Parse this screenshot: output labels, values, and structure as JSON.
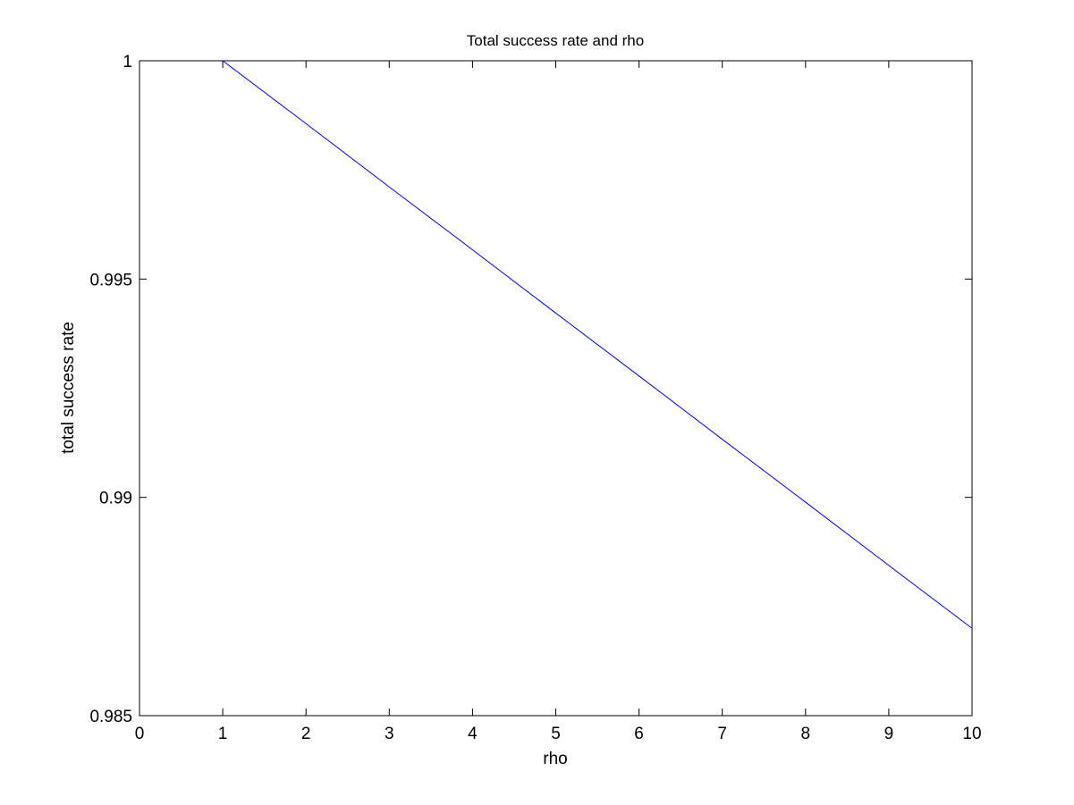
{
  "chart_data": {
    "type": "line",
    "title": "Total success rate and rho",
    "xlabel": "rho",
    "ylabel": "total success rate",
    "xlim": [
      0,
      10
    ],
    "ylim": [
      0.985,
      1
    ],
    "xticks": [
      "0",
      "1",
      "2",
      "3",
      "4",
      "5",
      "6",
      "7",
      "8",
      "9",
      "10"
    ],
    "yticks": [
      "0.985",
      "0.99",
      "0.995",
      "1"
    ],
    "grid": false,
    "series": [
      {
        "color": "#0000ff",
        "x": [
          1,
          2,
          3,
          4,
          5,
          6,
          7,
          8,
          9,
          10
        ],
        "y": [
          1.0,
          0.99856,
          0.99711,
          0.99567,
          0.99422,
          0.99278,
          0.99133,
          0.98989,
          0.98844,
          0.987
        ]
      }
    ]
  }
}
